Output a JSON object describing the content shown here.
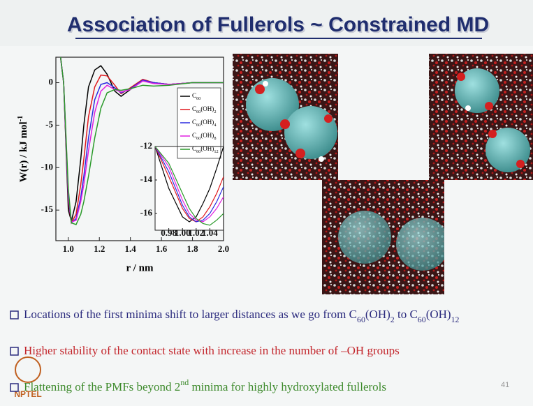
{
  "slide": {
    "title": "Association of Fullerols ~ Constrained MD",
    "bullets": [
      {
        "text": "Locations of the first minima shift to larger distances as we go from C60(OH)2 to C60(OH)12",
        "color": "#2b2b7e"
      },
      {
        "text": "Higher stability of the contact state with increase in the number of –OH groups",
        "color": "#c3262c"
      },
      {
        "text": "Flattening of the PMFs beyond 2nd minima for highly hydroxylated fullerols",
        "color": "#3d8a2c"
      }
    ],
    "page_number": "41",
    "logo": "NPTEL"
  },
  "chart_data": [
    {
      "type": "line",
      "xlabel": "r / nm",
      "ylabel": "W(r) / kJ mol-1",
      "x": [
        0.95,
        0.97,
        1.0,
        1.02,
        1.05,
        1.08,
        1.1,
        1.13,
        1.17,
        1.21,
        1.25,
        1.3,
        1.34,
        1.4,
        1.48,
        1.55,
        1.65,
        1.8,
        2.0
      ],
      "series": [
        {
          "name": "C60",
          "color": "#000000",
          "values": [
            3,
            0,
            -15,
            -16.3,
            -14,
            -9,
            -5,
            -0.5,
            1.5,
            2,
            1,
            -1,
            -1.6,
            -0.8,
            0.3,
            0,
            -0.2,
            0,
            0
          ]
        },
        {
          "name": "C60(OH)2",
          "color": "#e0191e",
          "values": [
            3,
            0,
            -14,
            -16.5,
            -15.5,
            -12,
            -9,
            -4,
            -0.5,
            0.9,
            0.8,
            -0.3,
            -1.3,
            -0.6,
            0.4,
            0,
            -0.2,
            0,
            0
          ]
        },
        {
          "name": "C60(OH)4",
          "color": "#2a2ae0",
          "values": [
            3,
            0,
            -13.5,
            -16.5,
            -16,
            -13.5,
            -11,
            -6.5,
            -2,
            -0.2,
            0,
            -0.6,
            -1.2,
            -0.7,
            0.3,
            0,
            -0.2,
            0,
            0
          ]
        },
        {
          "name": "C60(OH)8",
          "color": "#e020e0",
          "values": [
            3,
            0,
            -13,
            -16.4,
            -16.2,
            -14,
            -12,
            -8,
            -3.5,
            -1,
            -0.3,
            -0.8,
            -1.1,
            -0.8,
            0.2,
            -0.1,
            -0.2,
            0,
            0
          ]
        },
        {
          "name": "C60(OH)12",
          "color": "#2a9a2a",
          "values": [
            3,
            0,
            -12.5,
            -16.5,
            -16.7,
            -15.5,
            -14,
            -11,
            -6.5,
            -3,
            -1.2,
            -0.8,
            -0.9,
            -0.7,
            -0.3,
            -0.4,
            -0.3,
            0,
            0
          ]
        }
      ],
      "xlim": [
        0.92,
        2.0
      ],
      "ylim": [
        -18.6,
        3
      ],
      "xticks": [
        {
          "value": 1,
          "label": "1.0"
        },
        1.2,
        1.4,
        1.6,
        1.8,
        {
          "value": 2,
          "label": "2.0"
        }
      ],
      "yticks": [
        0,
        -5,
        -10,
        -15
      ],
      "legend": "upper right"
    },
    {
      "type": "line",
      "x": [
        0.96,
        0.98,
        1.0,
        1.01,
        1.02,
        1.03,
        1.04,
        1.05,
        1.06
      ],
      "series": [
        {
          "color": "#000000",
          "values": [
            -12,
            -14.5,
            -16.2,
            -16.5,
            -16.2,
            -15.4,
            -14.5,
            -13.3,
            -12
          ]
        },
        {
          "color": "#e0191e",
          "values": [
            -12,
            -13.8,
            -15.7,
            -16.3,
            -16.5,
            -16.2,
            -15.6,
            -14.8,
            -13.8
          ]
        },
        {
          "color": "#2a2ae0",
          "values": [
            -12,
            -13.5,
            -15.5,
            -16.2,
            -16.5,
            -16.4,
            -16,
            -15.3,
            -14.4
          ]
        },
        {
          "color": "#e020e0",
          "values": [
            -12,
            -13.2,
            -15.2,
            -16,
            -16.4,
            -16.5,
            -16.2,
            -15.7,
            -15
          ]
        },
        {
          "color": "#2a9a2a",
          "values": [
            -12,
            -13,
            -14.8,
            -15.7,
            -16.3,
            -16.6,
            -16.7,
            -16.4,
            -16
          ]
        }
      ],
      "xlim": [
        0.96,
        1.06
      ],
      "ylim": [
        -17,
        -12
      ],
      "xticks": [
        {
          "value": 0.98,
          "label": "0.98"
        },
        {
          "value": 1.0,
          "label": "1.00"
        },
        {
          "value": 1.02,
          "label": "1.02"
        },
        {
          "value": 1.04,
          "label": "1.04"
        }
      ],
      "yticks": [
        -12,
        -14,
        -16
      ]
    }
  ]
}
